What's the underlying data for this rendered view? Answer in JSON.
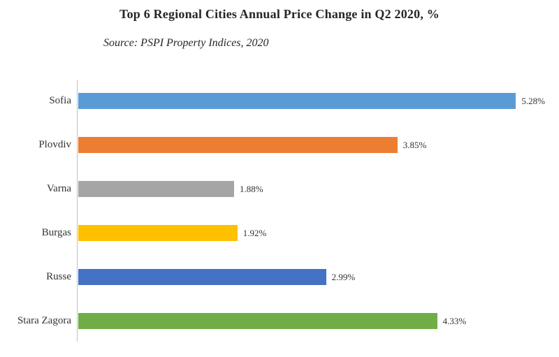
{
  "header": {
    "title": "Top 6 Regional Cities Annual Price Change in Q2 2020, %",
    "subtitle": "Source: PSPI Property Indices, 2020"
  },
  "chart_data": {
    "type": "bar",
    "orientation": "horizontal",
    "title": "Top 6 Regional Cities Annual Price Change in Q2 2020, %",
    "subtitle": "Source: PSPI Property Indices, 2020",
    "categories": [
      "Sofia",
      "Plovdiv",
      "Varna",
      "Burgas",
      "Russe",
      "Stara Zagora"
    ],
    "values": [
      5.28,
      3.85,
      1.88,
      1.92,
      2.99,
      4.33
    ],
    "value_labels": [
      "5.28%",
      "3.85%",
      "1.88%",
      "1.92%",
      "2.99%",
      "4.33%"
    ],
    "colors": [
      "#5B9BD5",
      "#ED7D31",
      "#A5A5A5",
      "#FFC000",
      "#4472C4",
      "#70AD47"
    ],
    "xlabel": "",
    "ylabel": "",
    "xlim": [
      0,
      5.8
    ],
    "grid": false,
    "legend": "none"
  }
}
